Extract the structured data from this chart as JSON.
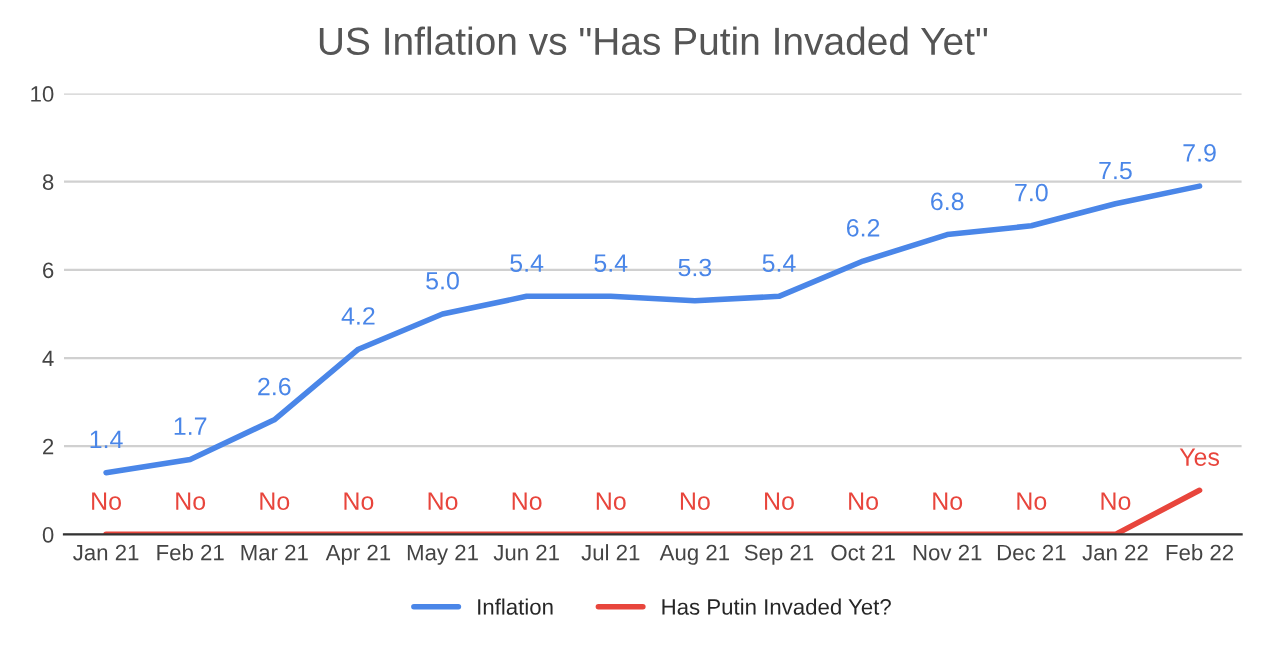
{
  "chart_data": {
    "type": "line",
    "title": "US Inflation vs \"Has Putin Invaded Yet\"",
    "categories": [
      "Jan 21",
      "Feb 21",
      "Mar 21",
      "Apr 21",
      "May 21",
      "Jun 21",
      "Jul 21",
      "Aug 21",
      "Sep 21",
      "Oct 21",
      "Nov 21",
      "Dec 21",
      "Jan 22",
      "Feb 22"
    ],
    "series": [
      {
        "name": "Inflation",
        "color": "#4a86e8",
        "values": [
          1.4,
          1.7,
          2.6,
          4.2,
          5.0,
          5.4,
          5.4,
          5.3,
          5.4,
          6.2,
          6.8,
          7.0,
          7.5,
          7.9
        ],
        "value_labels": [
          "1.4",
          "1.7",
          "2.6",
          "4.2",
          "5.0",
          "5.4",
          "5.4",
          "5.3",
          "5.4",
          "6.2",
          "6.8",
          "7.0",
          "7.5",
          "7.9"
        ]
      },
      {
        "name": "Has Putin Invaded Yet?",
        "color": "#e8453c",
        "values": [
          0,
          0,
          0,
          0,
          0,
          0,
          0,
          0,
          0,
          0,
          0,
          0,
          0,
          1
        ],
        "value_labels": [
          "No",
          "No",
          "No",
          "No",
          "No",
          "No",
          "No",
          "No",
          "No",
          "No",
          "No",
          "No",
          "No",
          "Yes"
        ]
      }
    ],
    "ylim": [
      0,
      10
    ],
    "yticks": [
      0,
      2,
      4,
      6,
      8,
      10
    ],
    "grid": "y",
    "legend": "bottom",
    "marker": "none",
    "line_style": "solid"
  }
}
